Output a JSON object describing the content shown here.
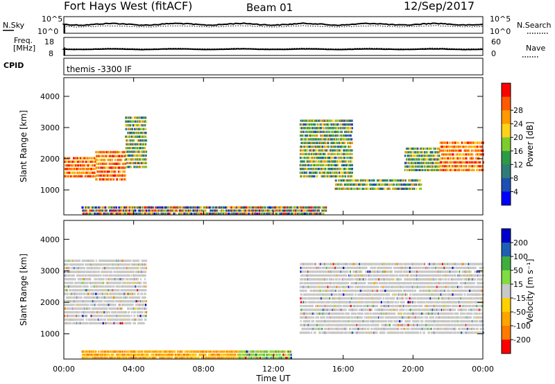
{
  "header": {
    "station": "Fort Hays West (fitACF)",
    "beam": "Beam 01",
    "date": "12/Sep/2017"
  },
  "sky_panel": {
    "left_label": "N.Sky",
    "right_label": "N.Search",
    "left_ticks": [
      "10^5",
      "10^0"
    ],
    "right_ticks": [
      "10^5",
      "10^0"
    ]
  },
  "freq_panel": {
    "left_label_top": "Freq.",
    "left_label_unit": "[MHz]",
    "right_label": "Nave",
    "left_ticks": [
      "18",
      "8"
    ],
    "right_ticks": [
      "60",
      "0"
    ]
  },
  "cpid": {
    "label": "CPID",
    "value": "themis -3300 IF"
  },
  "colors": {
    "power_scale": [
      "#0000ff",
      "#1e4fb4",
      "#2f7d78",
      "#2e9a46",
      "#7ccc2e",
      "#ffd21a",
      "#ff9a00",
      "#ff5a00",
      "#ff0000"
    ],
    "velocity_scale": [
      "#ff0000",
      "#ff7a00",
      "#ffa500",
      "#ffd000",
      "#c8c8c8",
      "#80dc40",
      "#3fae3f",
      "#1e5fb4",
      "#0000cc"
    ],
    "ground_scatter": "#c8c8c8"
  },
  "chart_data": [
    {
      "type": "heatmap",
      "name": "power",
      "xlabel": "",
      "ylabel": "Slant Range [km]",
      "xlim": [
        0,
        24
      ],
      "ylim": [
        200,
        4600
      ],
      "y_ticks": [
        1000,
        2000,
        3000,
        4000
      ],
      "colorbar": {
        "label": "Power [dB]",
        "range": [
          0,
          32
        ],
        "ticks": [
          "4",
          "8",
          "12",
          "16",
          "20",
          "24",
          "28"
        ]
      },
      "regions": [
        {
          "t0": 0.0,
          "t1": 1.8,
          "r0": 1400,
          "r1": 2100,
          "level": "high"
        },
        {
          "t0": 1.8,
          "t1": 3.5,
          "r0": 1300,
          "r1": 2300,
          "level": "high"
        },
        {
          "t0": 3.5,
          "t1": 4.7,
          "r0": 1700,
          "r1": 3400,
          "level": "mid"
        },
        {
          "t0": 13.5,
          "t1": 16.5,
          "r0": 1400,
          "r1": 3300,
          "level": "mid"
        },
        {
          "t0": 15.5,
          "t1": 20.5,
          "r0": 1000,
          "r1": 1400,
          "level": "mid"
        },
        {
          "t0": 19.5,
          "t1": 21.5,
          "r0": 1600,
          "r1": 2400,
          "level": "mid"
        },
        {
          "t0": 21.5,
          "t1": 24.0,
          "r0": 1600,
          "r1": 2600,
          "level": "high"
        },
        {
          "t0": 1.0,
          "t1": 15.0,
          "r0": 200,
          "r1": 500,
          "level": "mixed"
        }
      ]
    },
    {
      "type": "heatmap",
      "name": "velocity",
      "xlabel": "Time UT",
      "ylabel": "Slant Range [km]",
      "xlim": [
        0,
        24
      ],
      "ylim": [
        200,
        4600
      ],
      "x_ticks": [
        "00:00",
        "04:00",
        "08:00",
        "12:00",
        "16:00",
        "20:00",
        "00:00"
      ],
      "y_ticks": [
        1000,
        2000,
        3000,
        4000
      ],
      "colorbar": {
        "label": "Velocity [m s⁻¹]",
        "range": [
          -250,
          250
        ],
        "ticks": [
          "200",
          "100",
          "50",
          "15",
          "-15",
          "-50",
          "-100",
          "-200"
        ]
      },
      "regions": [
        {
          "t0": 0.0,
          "t1": 4.7,
          "r0": 1300,
          "r1": 3400,
          "level": "ground"
        },
        {
          "t0": 13.5,
          "t1": 24.0,
          "r0": 1000,
          "r1": 3300,
          "level": "ground"
        },
        {
          "t0": 1.0,
          "t1": 11.0,
          "r0": 200,
          "r1": 500,
          "level": "negative"
        },
        {
          "t0": 10.0,
          "t1": 13.0,
          "r0": 200,
          "r1": 500,
          "level": "positive"
        }
      ]
    }
  ]
}
